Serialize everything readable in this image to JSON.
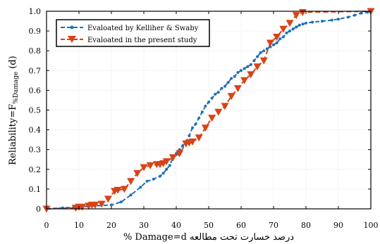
{
  "chart_data": {
    "type": "line",
    "xlabel": "% Damage=d درصد خسارت تحت مطالعه",
    "ylabel_main": "Reliability=F",
    "ylabel_sub": "%Damage",
    "ylabel_tail": "(d)",
    "xlim": [
      0,
      100
    ],
    "ylim": [
      0,
      1.0
    ],
    "x_ticks": [
      "0",
      "10",
      "20",
      "30",
      "40",
      "50",
      "60",
      "70",
      "80",
      "90",
      "100"
    ],
    "y_ticks": [
      "0",
      "0.1",
      "0.2",
      "0.3",
      "0.4",
      "0.5",
      "0.6",
      "0.7",
      "0.8",
      "0.9",
      "1.0"
    ],
    "grid": true,
    "legend_position": "top-left",
    "series": [
      {
        "name": "Evaloated by Kelliher & Swaby",
        "color": "#1f6fb5",
        "style": "dashed-with-dots",
        "x": [
          0,
          5,
          10,
          15,
          20,
          23,
          26,
          29,
          31,
          33,
          35,
          36,
          37,
          38,
          39,
          40,
          41,
          42,
          43,
          44,
          45,
          46,
          47,
          48,
          49,
          50,
          51,
          52,
          53,
          54,
          55,
          56,
          57,
          58,
          59,
          60,
          61,
          62,
          63,
          64,
          65,
          66,
          67,
          68,
          69,
          70,
          71,
          72,
          73,
          74,
          75,
          76,
          77,
          78,
          79,
          80,
          82,
          85,
          88,
          90,
          93,
          95,
          97,
          99,
          100
        ],
        "y": [
          0,
          0.005,
          0.01,
          0.015,
          0.02,
          0.035,
          0.07,
          0.11,
          0.14,
          0.15,
          0.165,
          0.18,
          0.2,
          0.22,
          0.26,
          0.28,
          0.3,
          0.32,
          0.34,
          0.37,
          0.41,
          0.43,
          0.46,
          0.49,
          0.52,
          0.54,
          0.56,
          0.58,
          0.59,
          0.61,
          0.62,
          0.64,
          0.66,
          0.67,
          0.69,
          0.7,
          0.71,
          0.72,
          0.73,
          0.75,
          0.77,
          0.79,
          0.8,
          0.81,
          0.82,
          0.83,
          0.84,
          0.86,
          0.87,
          0.89,
          0.9,
          0.91,
          0.92,
          0.93,
          0.935,
          0.94,
          0.945,
          0.95,
          0.955,
          0.96,
          0.97,
          0.98,
          0.99,
          0.995,
          1.0
        ]
      },
      {
        "name": "Evaloated in the present study",
        "color": "#d84315",
        "style": "dashed-with-triangles",
        "x": [
          0,
          9,
          10,
          11,
          13,
          14,
          15,
          17,
          19,
          21,
          22,
          24,
          26,
          28,
          30,
          32,
          34,
          35,
          36,
          37,
          39,
          41,
          43,
          44,
          45,
          47,
          49,
          51,
          53,
          55,
          57,
          59,
          61,
          63,
          65,
          67,
          69,
          71,
          73,
          75,
          77,
          79,
          100
        ],
        "y": [
          0,
          0.005,
          0.01,
          0.01,
          0.015,
          0.02,
          0.02,
          0.025,
          0.05,
          0.09,
          0.095,
          0.1,
          0.14,
          0.18,
          0.21,
          0.22,
          0.225,
          0.225,
          0.23,
          0.24,
          0.26,
          0.28,
          0.33,
          0.335,
          0.34,
          0.36,
          0.41,
          0.46,
          0.49,
          0.52,
          0.57,
          0.61,
          0.65,
          0.68,
          0.72,
          0.75,
          0.84,
          0.87,
          0.91,
          0.94,
          0.98,
          0.995,
          1.0
        ]
      }
    ]
  }
}
